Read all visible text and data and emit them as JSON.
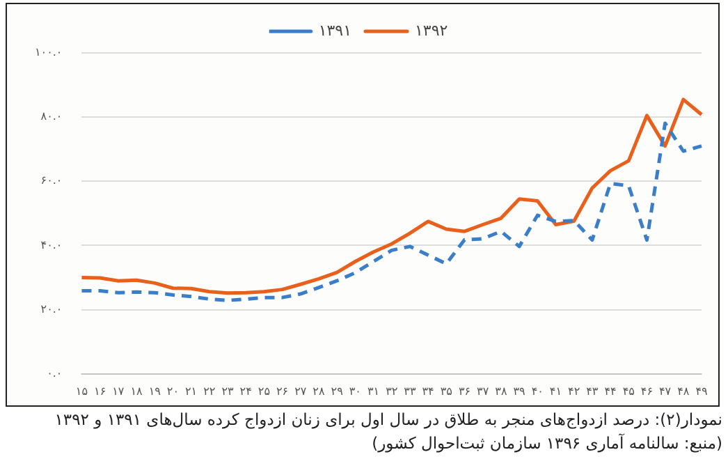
{
  "chart_data": {
    "type": "line",
    "categories": [
      "۱۵",
      "۱۶",
      "۱۷",
      "۱۸",
      "۱۹",
      "۲۰",
      "۲۱",
      "۲۲",
      "۲۳",
      "۲۴",
      "۲۵",
      "۲۶",
      "۲۷",
      "۲۸",
      "۲۹",
      "۳۰",
      "۳۱",
      "۳۲",
      "۳۳",
      "۳۴",
      "۳۵",
      "۳۶",
      "۳۷",
      "۳۸",
      "۳۹",
      "۴۰",
      "۴۱",
      "۴۲",
      "۴۳",
      "۴۴",
      "۴۵",
      "۴۶",
      "۴۷",
      "۴۸",
      "۴۹"
    ],
    "series": [
      {
        "name": "۱۳۹۱",
        "color": "#3a7dc9",
        "line_style": "dashed",
        "values": [
          25.9,
          25.9,
          25.3,
          25.5,
          25.3,
          24.6,
          24.1,
          23.3,
          22.9,
          23.3,
          23.8,
          23.8,
          24.9,
          26.9,
          29,
          31.5,
          35,
          38.5,
          39.7,
          37,
          34.3,
          41.8,
          42.1,
          44.4,
          39.7,
          49.4,
          47.5,
          47.8,
          41.7,
          59.3,
          58.6,
          41.7,
          78.1,
          69.4,
          71
        ]
      },
      {
        "name": "۱۳۹۲",
        "color": "#e8601c",
        "line_style": "solid",
        "values": [
          30,
          29.9,
          29,
          29.2,
          28.3,
          26.7,
          26.6,
          25.6,
          25.2,
          25.3,
          25.6,
          26.3,
          27.9,
          29.6,
          31.6,
          35,
          38,
          40.5,
          43.8,
          47.5,
          45.1,
          44.4,
          46.5,
          48.5,
          54.5,
          53.9,
          46.5,
          47.6,
          57.9,
          63.3,
          66.4,
          80.5,
          71,
          85.5,
          80.8
        ]
      }
    ],
    "ylim": [
      0,
      100
    ],
    "yticks": [
      {
        "value": 0,
        "label": "۰.۰"
      },
      {
        "value": 20,
        "label": "۲۰.۰"
      },
      {
        "value": 40,
        "label": "۴۰.۰"
      },
      {
        "value": 60,
        "label": "۶۰.۰"
      },
      {
        "value": 80,
        "label": "۸۰.۰"
      },
      {
        "value": 100,
        "label": "۱۰۰.۰"
      }
    ],
    "grid": "y",
    "legend": "top",
    "marker": "none",
    "annotations": [
      "نمودار(۲): درصد ازدواج‌های منجر به طلاق در سال اول برای زنان ازدواج کرده سال‌های ۱۳۹۱ و ۱۳۹۲",
      "(منبع: سالنامه آماری ۱۳۹۶ سازمان ثبت‌احوال کشور)"
    ]
  }
}
